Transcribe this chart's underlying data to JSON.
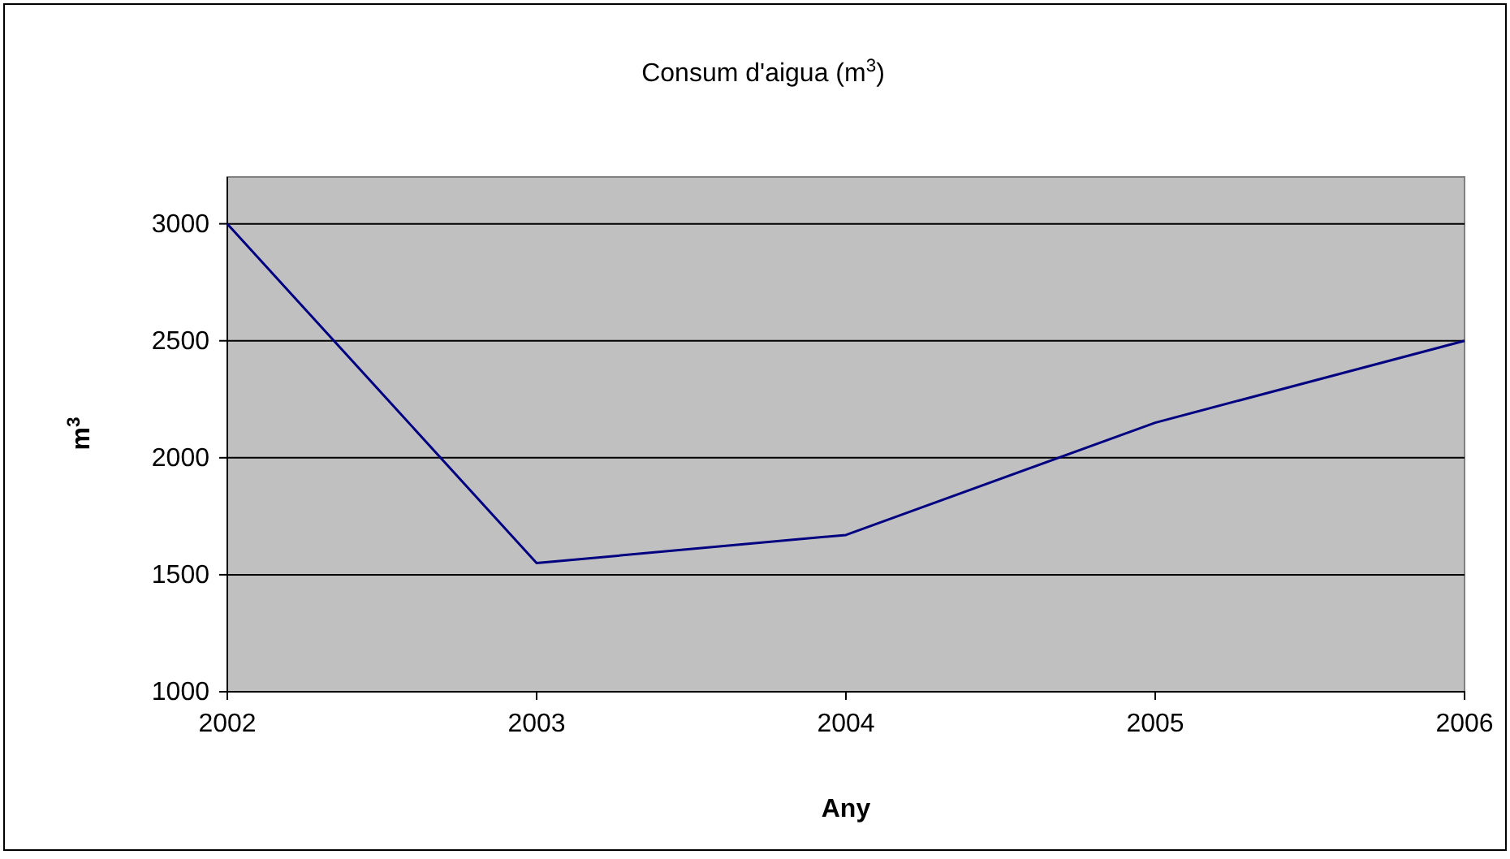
{
  "chart_data": {
    "type": "line",
    "title": "Consum d'aigua (m$^{3}$)",
    "xlabel": "Any",
    "ylabel": "m$^{3}$",
    "x": [
      2002,
      2003,
      2004,
      2005,
      2006
    ],
    "series": [
      {
        "color": "#000080",
        "values": [
          3000,
          1550,
          1670,
          2150,
          2500
        ]
      }
    ],
    "xlim": [
      2002,
      2006
    ],
    "xticks": [
      2002,
      2003,
      2004,
      2005,
      2006
    ],
    "ylim": [
      1000,
      3200
    ],
    "yticks": [
      1000,
      1500,
      2000,
      2500,
      3000
    ],
    "grid": "y",
    "marker": "none",
    "line_style": "solid"
  }
}
